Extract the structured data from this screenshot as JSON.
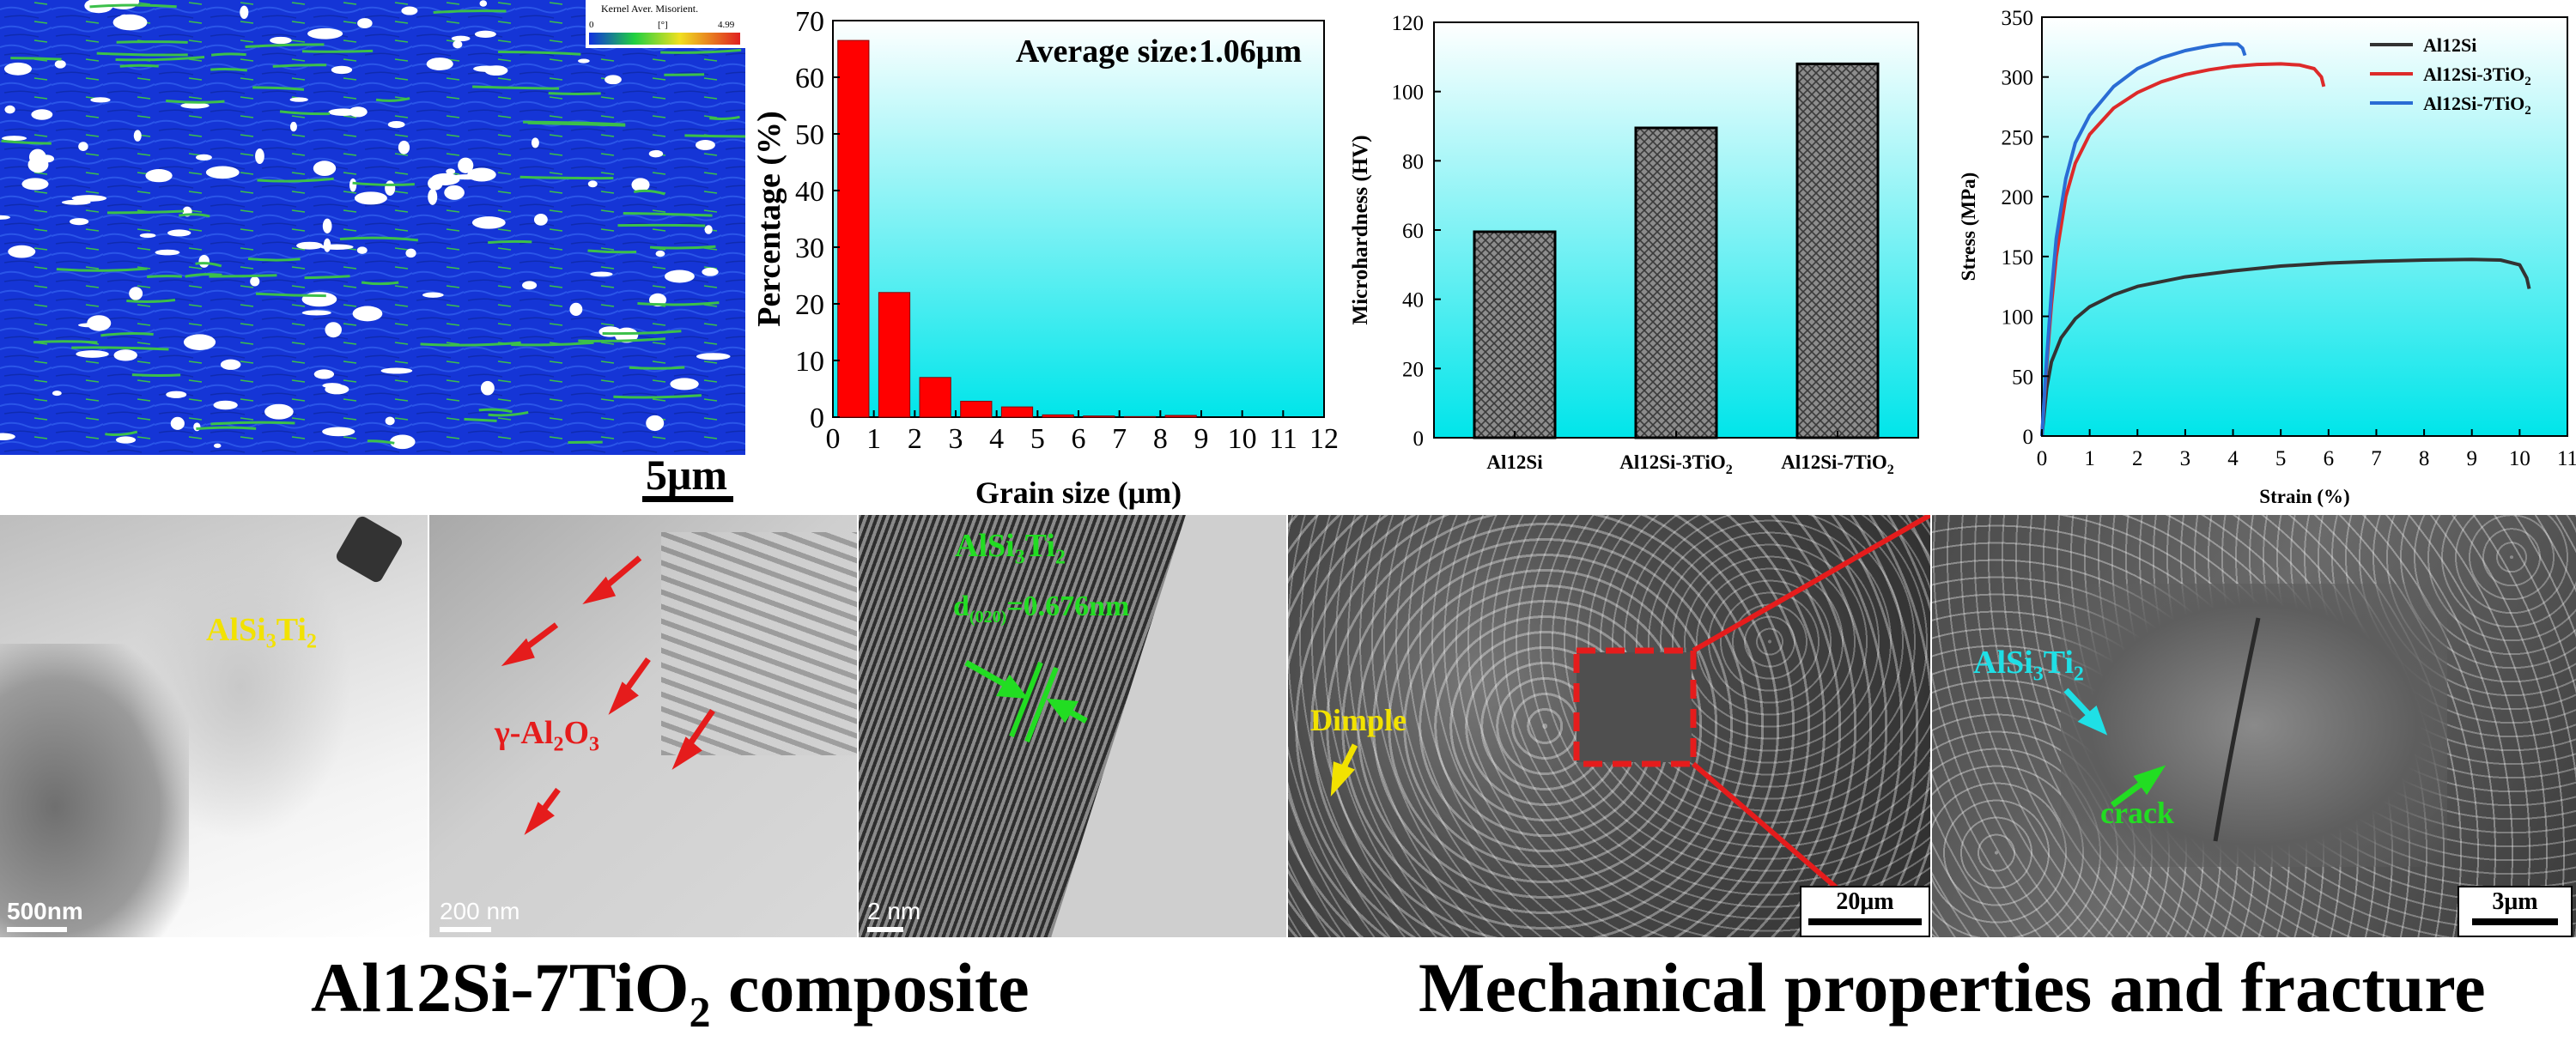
{
  "ebsd": {
    "legend_title": "Kernel Aver. Misorient.",
    "legend_min": "0",
    "legend_unit": "[°]",
    "legend_max": "4.99",
    "scale_bar": "5μm",
    "colors": {
      "matrix": "#1535d6",
      "boundary": "#3cc04a",
      "pore": "#ffffff"
    }
  },
  "grain_chart": {
    "type": "bar",
    "annotation": "Average size:1.06μm",
    "xlabel": "Grain size (μm)",
    "ylabel": "Percentage (%)",
    "xlim": [
      0,
      12
    ],
    "ylim": [
      0,
      70
    ],
    "x_ticks": [
      "0",
      "1",
      "2",
      "3",
      "4",
      "5",
      "6",
      "7",
      "8",
      "9",
      "10",
      "11",
      "12"
    ],
    "y_ticks": [
      "0",
      "10",
      "20",
      "30",
      "40",
      "50",
      "60",
      "70"
    ],
    "x": [
      0.5,
      1.5,
      2.5,
      3.5,
      4.5,
      5.5,
      6.5,
      7.5,
      8.5
    ],
    "values": [
      66.5,
      22,
      7,
      2.8,
      1.8,
      0.4,
      0.2,
      0.1,
      0.3
    ],
    "bar_color": "#ff0000",
    "bg_top": "#ffffff",
    "bg_bottom": "#00e5ea"
  },
  "hardness_chart": {
    "type": "bar",
    "ylabel": "Microhardness (HV)",
    "ylim": [
      0,
      120
    ],
    "y_ticks": [
      "0",
      "20",
      "40",
      "60",
      "80",
      "100",
      "120"
    ],
    "categories": [
      {
        "base": "Al12Si",
        "sub": ""
      },
      {
        "base": "Al12Si-3TiO",
        "sub": "2"
      },
      {
        "base": "Al12Si-7TiO",
        "sub": "2"
      }
    ],
    "values": [
      59.5,
      89.5,
      108
    ],
    "bar_color": "#888888"
  },
  "stress_chart": {
    "type": "line",
    "xlabel": "Strain (%)",
    "ylabel": "Stress (MPa)",
    "xlim": [
      0,
      11
    ],
    "ylim": [
      0,
      350
    ],
    "x_ticks": [
      "0",
      "1",
      "2",
      "3",
      "4",
      "5",
      "6",
      "7",
      "8",
      "9",
      "10",
      "11"
    ],
    "y_ticks": [
      "0",
      "50",
      "100",
      "150",
      "200",
      "250",
      "300",
      "350"
    ],
    "series": [
      {
        "base": "Al12Si",
        "sub": "",
        "color": "#333333",
        "points": [
          [
            0,
            0
          ],
          [
            0.1,
            40
          ],
          [
            0.2,
            62
          ],
          [
            0.4,
            82
          ],
          [
            0.7,
            98
          ],
          [
            1,
            108
          ],
          [
            1.5,
            118
          ],
          [
            2,
            125
          ],
          [
            3,
            133
          ],
          [
            4,
            138
          ],
          [
            5,
            142
          ],
          [
            6,
            144.5
          ],
          [
            7,
            146
          ],
          [
            8,
            147
          ],
          [
            9,
            147.5
          ],
          [
            9.6,
            147
          ],
          [
            10,
            143
          ],
          [
            10.15,
            132
          ],
          [
            10.2,
            123
          ]
        ]
      },
      {
        "base": "Al12Si-3TiO",
        "sub": "2",
        "color": "#dd2a2a",
        "points": [
          [
            0,
            0
          ],
          [
            0.1,
            60
          ],
          [
            0.2,
            110
          ],
          [
            0.3,
            150
          ],
          [
            0.5,
            200
          ],
          [
            0.7,
            228
          ],
          [
            1,
            252
          ],
          [
            1.5,
            274
          ],
          [
            2,
            287
          ],
          [
            2.5,
            296
          ],
          [
            3,
            302
          ],
          [
            3.5,
            306
          ],
          [
            4,
            309
          ],
          [
            4.5,
            310.5
          ],
          [
            5,
            311
          ],
          [
            5.4,
            310
          ],
          [
            5.7,
            307
          ],
          [
            5.85,
            300
          ],
          [
            5.9,
            292
          ]
        ]
      },
      {
        "base": "Al12Si-7TiO",
        "sub": "2",
        "color": "#2a6cd4",
        "points": [
          [
            0,
            0
          ],
          [
            0.1,
            65
          ],
          [
            0.2,
            120
          ],
          [
            0.3,
            165
          ],
          [
            0.5,
            215
          ],
          [
            0.7,
            245
          ],
          [
            1,
            268
          ],
          [
            1.5,
            292
          ],
          [
            2,
            307
          ],
          [
            2.5,
            316
          ],
          [
            3,
            322
          ],
          [
            3.5,
            326
          ],
          [
            3.8,
            327.5
          ],
          [
            4.1,
            327.5
          ],
          [
            4.2,
            324
          ],
          [
            4.25,
            318
          ]
        ]
      }
    ]
  },
  "tem1": {
    "phase_base": "AlSi",
    "phase_sub1": "3",
    "phase_mid": "Ti",
    "phase_sub2": "2",
    "scale_bar": "500nm"
  },
  "tem2": {
    "phase_base": "γ-Al",
    "phase_sub1": "2",
    "phase_mid": "O",
    "phase_sub2": "3",
    "scale_bar": "200 nm"
  },
  "hrtem": {
    "phase_base": "AlSi",
    "phase_sub1": "3",
    "phase_mid": "Ti",
    "phase_sub2": "2",
    "d_label": "d",
    "d_sub": "(020)",
    "d_value": "=0.676nm",
    "scale_bar": "2 nm"
  },
  "sem1": {
    "label": "Dimple",
    "scale_bar": "20μm"
  },
  "sem2": {
    "phase_base": "AlSi",
    "phase_sub1": "3",
    "phase_mid": "Ti",
    "phase_sub2": "2",
    "crack_label": "crack",
    "scale_bar": "3μm"
  },
  "captions": {
    "left_base": "Al12Si-7TiO",
    "left_sub": "2",
    "left_tail": " composite",
    "right": "Mechanical properties and fracture"
  }
}
